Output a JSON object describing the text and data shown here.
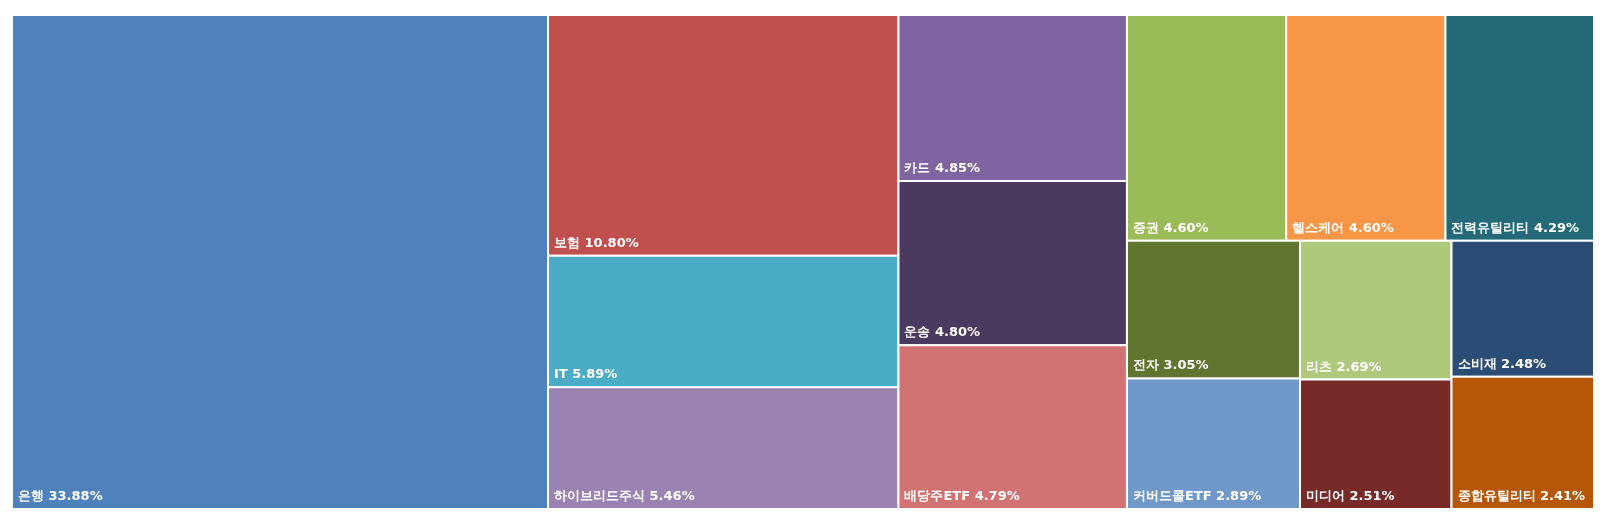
{
  "chart_data": {
    "type": "other",
    "categories": [
      "은행",
      "보험",
      "IT",
      "하이브리드주식",
      "카드",
      "운송",
      "배당주ETF",
      "증권",
      "헬스케어",
      "전력유틸리티",
      "전자",
      "커버드콜ETF",
      "리츠",
      "미디어",
      "소비재",
      "종합유틸리티"
    ],
    "values": [
      33.88,
      10.8,
      5.89,
      5.46,
      4.85,
      4.8,
      4.79,
      4.6,
      4.6,
      4.29,
      3.05,
      2.89,
      2.69,
      2.51,
      2.48,
      2.41
    ],
    "value_labels": [
      "33.88%",
      "10.80%",
      "5.89%",
      "5.46%",
      "4.85%",
      "4.80%",
      "4.79%",
      "4.60%",
      "4.60%",
      "4.29%",
      "3.05%",
      "2.89%",
      "2.69%",
      "2.51%",
      "2.48%",
      "2.41%"
    ],
    "colors": [
      "#4f81bd",
      "#c0504d",
      "#4bacc6",
      "#9a83b3",
      "#8064a2",
      "#4b3a60",
      "#d07372",
      "#9bbb59",
      "#f79646",
      "#236977",
      "#60752f",
      "#7098c9",
      "#aec97c",
      "#772a28",
      "#2b4d75",
      "#b65708"
    ]
  }
}
